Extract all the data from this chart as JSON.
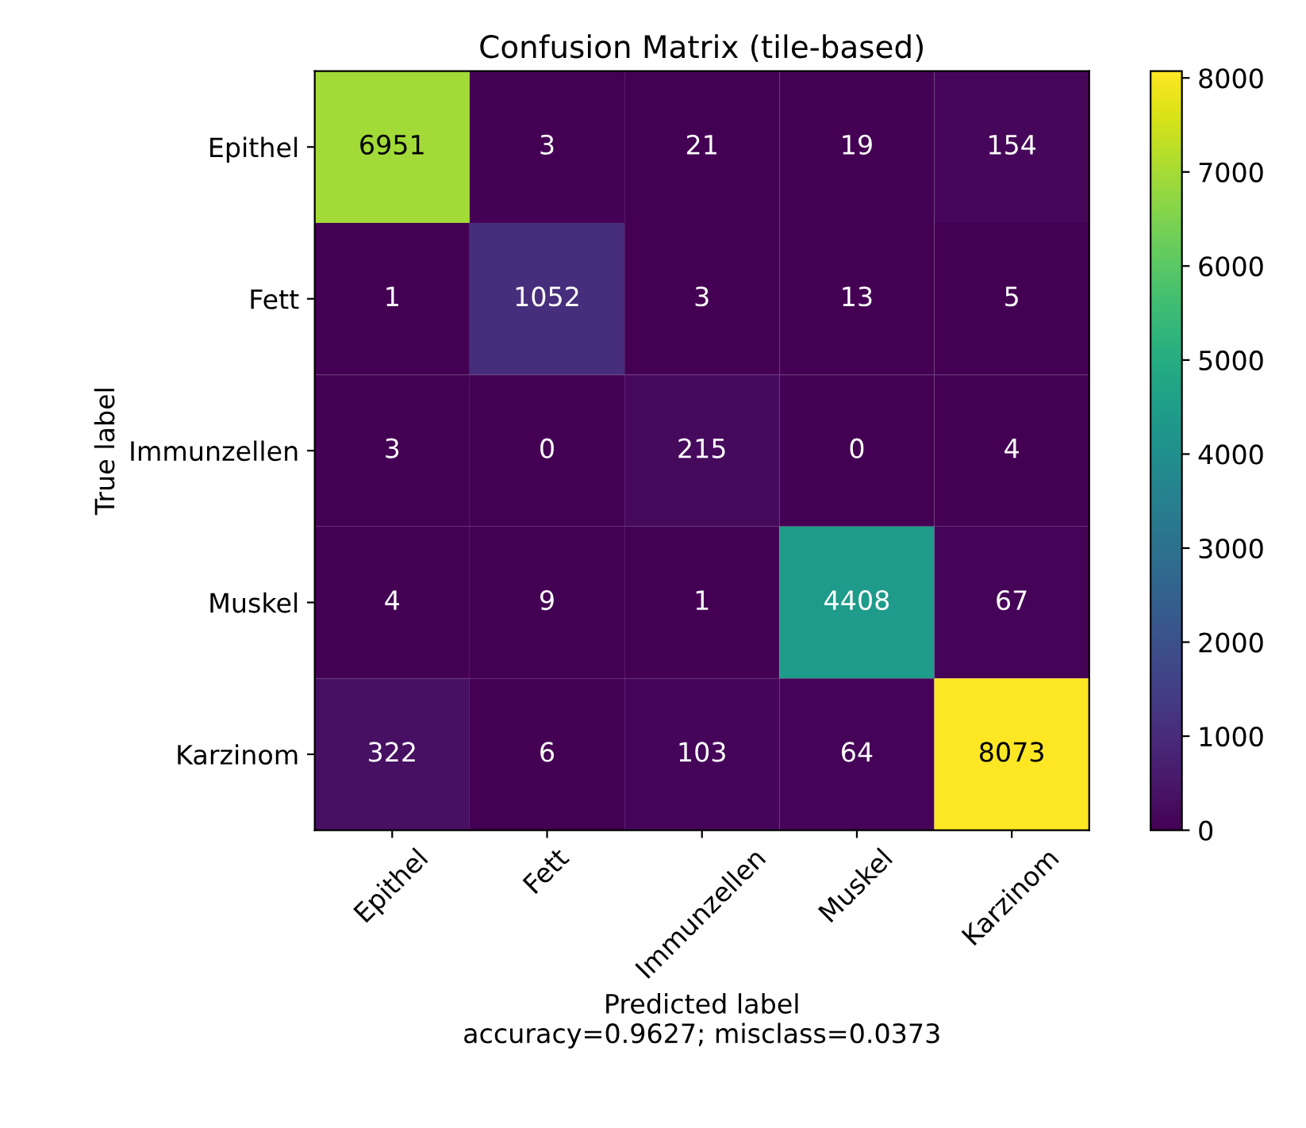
{
  "chart_data": {
    "type": "heatmap",
    "title": "Confusion Matrix (tile-based)",
    "xlabel": "Predicted label\naccuracy=0.9627; misclass=0.0373",
    "ylabel": "True label",
    "categories": [
      "Epithel",
      "Fett",
      "Immunzellen",
      "Muskel",
      "Karzinom"
    ],
    "y_categories": [
      "Epithel",
      "Fett",
      "Immunzellen",
      "Muskel",
      "Karzinom"
    ],
    "cells": [
      [
        6951,
        3,
        21,
        19,
        154
      ],
      [
        1,
        1052,
        3,
        13,
        5
      ],
      [
        3,
        0,
        215,
        0,
        4
      ],
      [
        4,
        9,
        1,
        4408,
        67
      ],
      [
        322,
        6,
        103,
        64,
        8073
      ]
    ],
    "clim": [
      0,
      8073
    ],
    "cticks": [
      0,
      1000,
      2000,
      3000,
      4000,
      5000,
      6000,
      7000,
      8000
    ],
    "data_labels": true,
    "grid": false
  }
}
